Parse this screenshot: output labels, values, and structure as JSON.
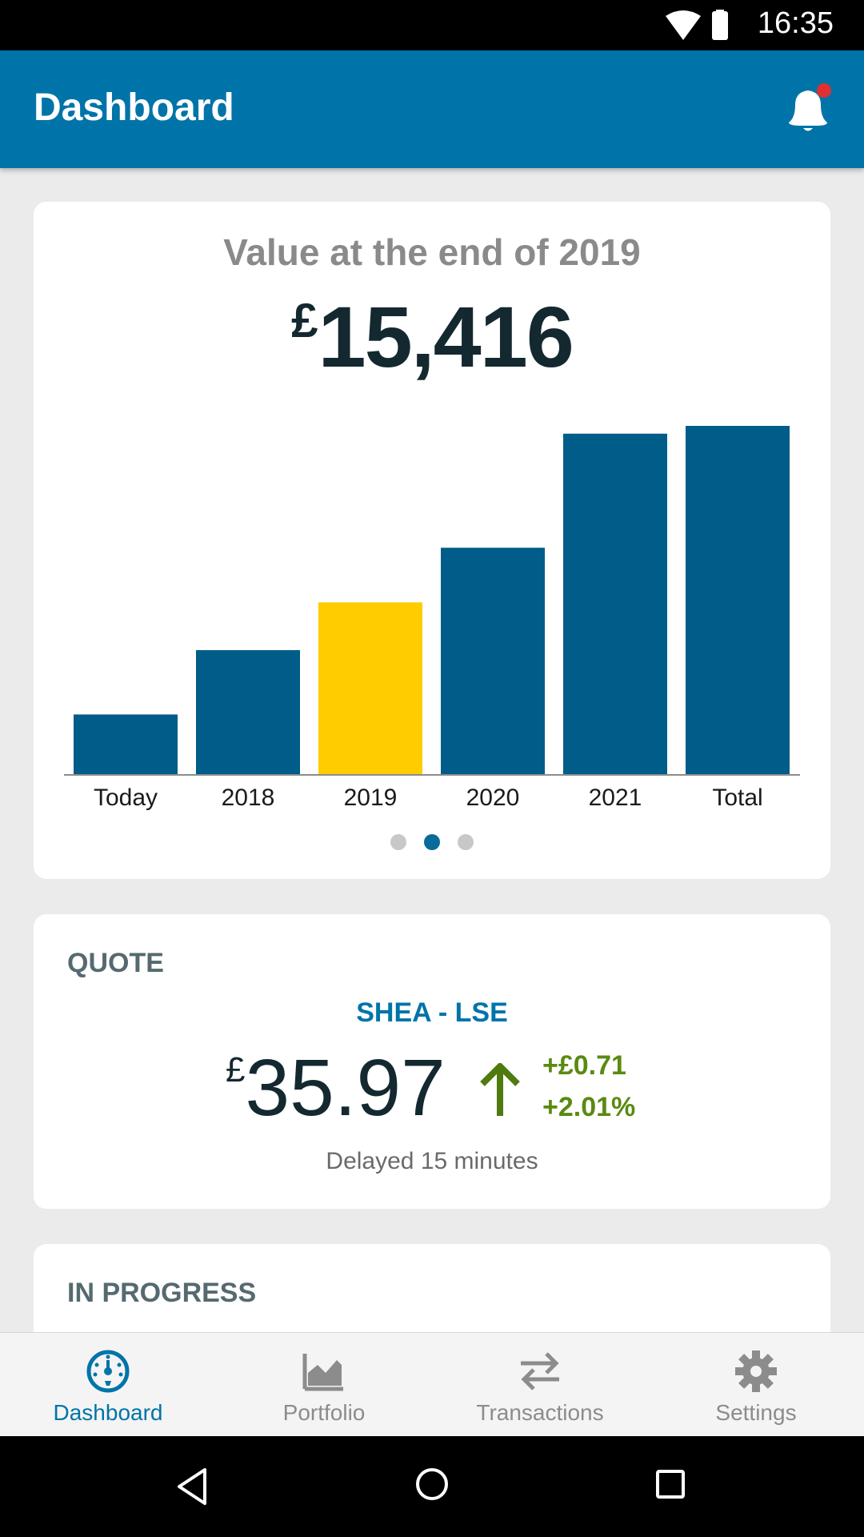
{
  "status_bar": {
    "time": "16:35"
  },
  "app_bar": {
    "title": "Dashboard",
    "notification_icon": "bell-icon",
    "has_notification": true
  },
  "value_card": {
    "heading": "Value at the end of 2019",
    "currency": "£",
    "amount": "15,416",
    "selected_page": 2,
    "page_count": 3
  },
  "chart_data": {
    "type": "bar",
    "categories": [
      "Today",
      "2018",
      "2019",
      "2020",
      "2021",
      "Total"
    ],
    "values": [
      6.2,
      12.8,
      17.7,
      23.3,
      35.0,
      35.8
    ],
    "highlight_index": 2,
    "colors": {
      "bar": "#005c88",
      "highlight": "#ffcc00",
      "axis": "#8c8c8c"
    }
  },
  "quote_card": {
    "label": "QUOTE",
    "ticker": "SHEA - LSE",
    "currency": "£",
    "price": "35.97",
    "change_abs": "+£0.71",
    "change_pct": "+2.01%",
    "delay_note": "Delayed 15 minutes",
    "direction_icon": "arrow-up-icon"
  },
  "progress_card": {
    "label": "IN PROGRESS"
  },
  "bottom_nav": {
    "items": [
      {
        "label": "Dashboard",
        "icon": "dashboard-gauge-icon",
        "active": true
      },
      {
        "label": "Portfolio",
        "icon": "area-chart-icon",
        "active": false
      },
      {
        "label": "Transactions",
        "icon": "swap-arrows-icon",
        "active": false
      },
      {
        "label": "Settings",
        "icon": "gear-icon",
        "active": false
      }
    ]
  },
  "colors": {
    "primary": "#0074a8",
    "positive": "#5a8a12",
    "highlight": "#ffcc00"
  }
}
